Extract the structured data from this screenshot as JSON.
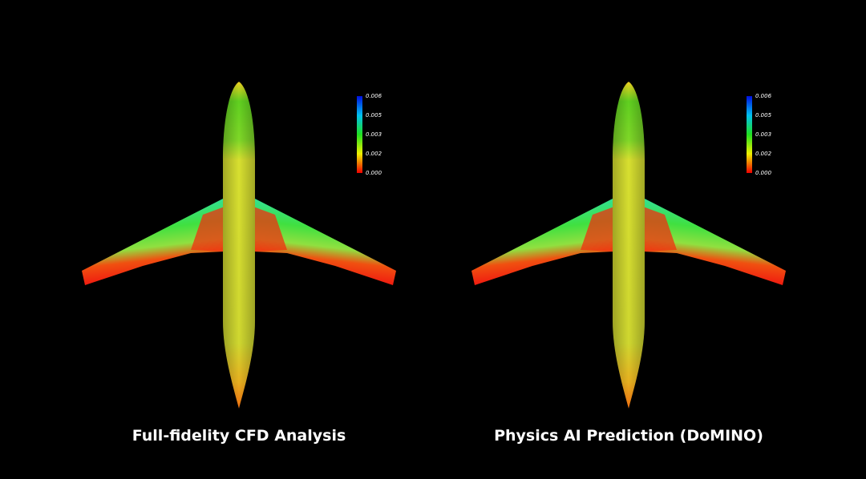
{
  "panels": [
    {
      "caption": "Full-fidelity CFD Analysis",
      "colorbar_labels": [
        "0.006",
        "0.005",
        "0.003",
        "0.002",
        "0.000"
      ]
    },
    {
      "caption": "Physics AI Prediction (DoMINO)",
      "colorbar_labels": [
        "0.006",
        "0.005",
        "0.003",
        "0.002",
        "0.000"
      ]
    }
  ]
}
